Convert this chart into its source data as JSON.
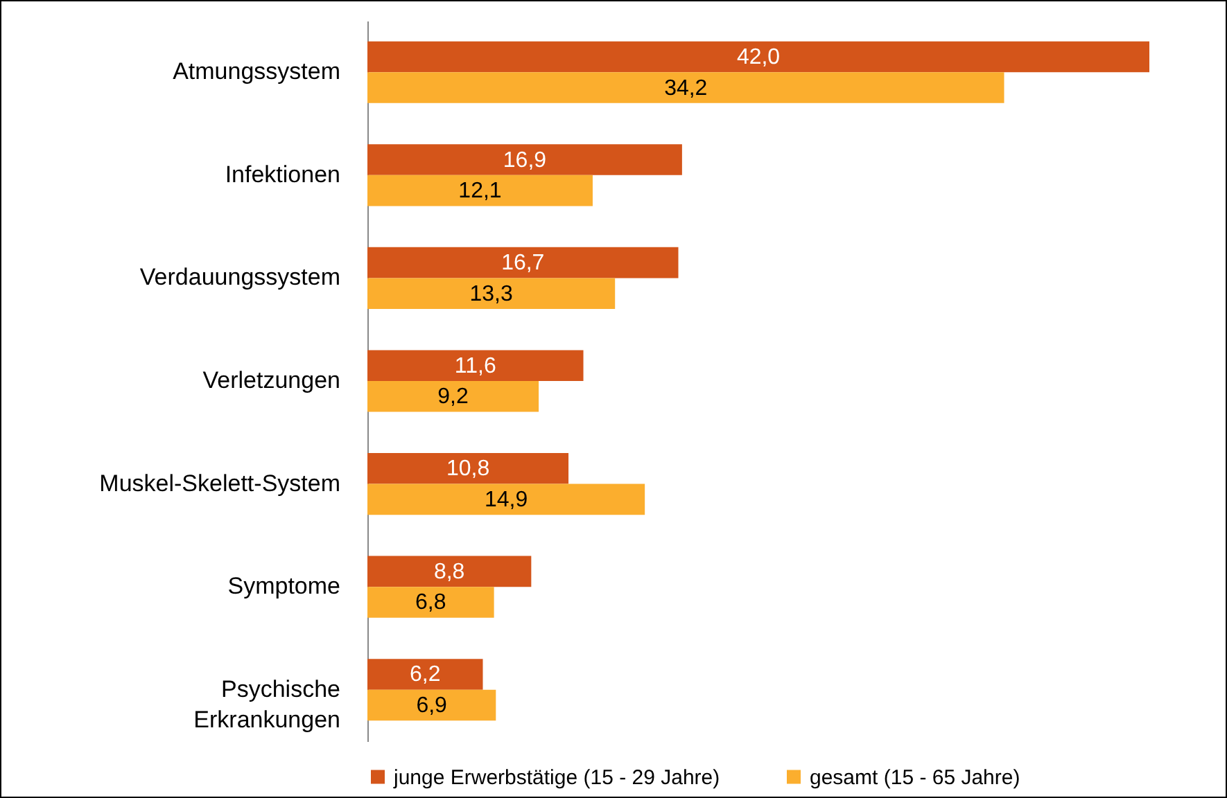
{
  "chart_data": {
    "type": "bar",
    "orientation": "horizontal",
    "legend": "bottom",
    "categories": [
      "Atmungssystem",
      "Infektionen",
      "Verdauungssystem",
      "Verletzungen",
      "Muskel-Skelett-System",
      "Symptome",
      "Psychische\nErkrankungen"
    ],
    "series": [
      {
        "name": "junge Erwerbstätige (15 - 29 Jahre)",
        "color": "#d4551a",
        "values": [
          42.0,
          16.9,
          16.7,
          11.6,
          10.8,
          8.8,
          6.2
        ],
        "value_labels": [
          "42,0",
          "16,9",
          "16,7",
          "11,6",
          "10,8",
          "8,8",
          "6,2"
        ]
      },
      {
        "name": "gesamt (15 - 65 Jahre)",
        "color": "#fbae2e",
        "values": [
          34.2,
          12.1,
          13.3,
          9.2,
          14.9,
          6.8,
          6.9
        ],
        "value_labels": [
          "34,2",
          "12,1",
          "13,3",
          "9,2",
          "14,9",
          "6,8",
          "6,9"
        ]
      }
    ]
  }
}
